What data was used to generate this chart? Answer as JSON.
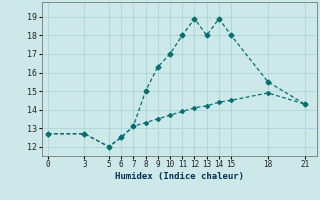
{
  "xlabel": "Humidex (Indice chaleur)",
  "line1_x": [
    0,
    3,
    5,
    6,
    7,
    8,
    9,
    10,
    11,
    12,
    13,
    14,
    15,
    18,
    21
  ],
  "line1_y": [
    12.7,
    12.7,
    12.0,
    12.5,
    13.1,
    15.0,
    16.3,
    17.0,
    18.0,
    18.9,
    18.0,
    18.9,
    18.0,
    15.5,
    14.3
  ],
  "line2_x": [
    0,
    3,
    5,
    6,
    7,
    8,
    9,
    10,
    11,
    12,
    13,
    14,
    15,
    18,
    21
  ],
  "line2_y": [
    12.7,
    12.7,
    12.0,
    12.5,
    13.1,
    13.3,
    13.5,
    13.7,
    13.9,
    14.1,
    14.2,
    14.4,
    14.5,
    14.9,
    14.3
  ],
  "line_color": "#007070",
  "bg_color": "#cce8e8",
  "grid_color": "#b0d8d8",
  "xticks": [
    0,
    3,
    5,
    6,
    7,
    8,
    9,
    10,
    11,
    12,
    13,
    14,
    15,
    18,
    21
  ],
  "yticks": [
    12,
    13,
    14,
    15,
    16,
    17,
    18,
    19
  ],
  "xlim": [
    -0.5,
    22
  ],
  "ylim": [
    11.5,
    19.8
  ]
}
